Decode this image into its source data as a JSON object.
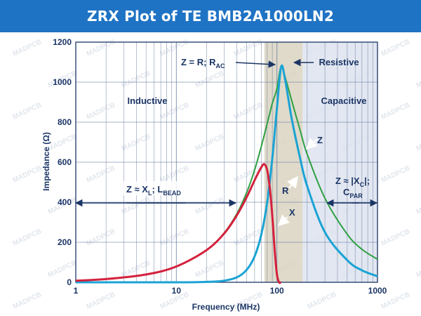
{
  "chart_data": {
    "type": "line",
    "title": "ZRX Plot of TE BMB2A1000LN2",
    "xlabel": "Frequency (MHz)",
    "ylabel": "Impedance (Ω)",
    "xscale": "log",
    "xlim": [
      1,
      1000
    ],
    "ylim": [
      0,
      1200
    ],
    "x_ticks": [
      1,
      10,
      100,
      1000
    ],
    "x_tick_labels": [
      "1",
      "10",
      "100",
      "1000"
    ],
    "y_ticks": [
      0,
      200,
      400,
      600,
      800,
      1000,
      1200
    ],
    "y_tick_labels": [
      "0",
      "200",
      "400",
      "600",
      "800",
      "1000",
      "1200"
    ],
    "grid": true,
    "regions": [
      {
        "name": "Inductive",
        "label": "Inductive",
        "x_range": [
          1,
          75
        ]
      },
      {
        "name": "Resistive",
        "label": "Resistive",
        "x_range": [
          75,
          180
        ],
        "color": "#d9d4c1"
      },
      {
        "name": "Capacitive",
        "label": "Capacitive",
        "x_range": [
          180,
          1000
        ],
        "color": "#dde3ee"
      }
    ],
    "series": [
      {
        "name": "Z",
        "color": "#2ea043",
        "x": [
          1,
          2,
          5,
          10,
          20,
          30,
          40,
          50,
          60,
          70,
          80,
          90,
          100,
          110,
          120,
          140,
          170,
          200,
          300,
          500,
          700,
          1000
        ],
        "y": [
          8,
          16,
          39,
          79,
          161,
          248,
          343,
          448,
          562,
          680,
          793,
          894,
          968,
          1080,
          1030,
          910,
          760,
          640,
          420,
          240,
          165,
          115
        ]
      },
      {
        "name": "R",
        "color": "#1aa3d4",
        "x": [
          1,
          10,
          20,
          30,
          40,
          50,
          60,
          70,
          80,
          90,
          100,
          110,
          120,
          140,
          170,
          200,
          300,
          500,
          700,
          1000
        ],
        "y": [
          0,
          0,
          2,
          8,
          25,
          62,
          130,
          240,
          400,
          620,
          870,
          1075,
          1020,
          820,
          620,
          480,
          250,
          110,
          60,
          30
        ]
      },
      {
        "name": "X",
        "color": "#d4213d",
        "x": [
          1,
          2,
          5,
          10,
          20,
          30,
          40,
          50,
          60,
          70,
          75,
          80,
          85,
          90,
          95,
          100,
          105,
          110
        ],
        "y": [
          8,
          16,
          39,
          79,
          161,
          245,
          335,
          425,
          510,
          575,
          590,
          560,
          470,
          330,
          160,
          40,
          0,
          0
        ]
      }
    ],
    "annotations": {
      "z_r": "Z = R; R",
      "z_r_sub": "AC",
      "resistive": "Resistive",
      "inductive": "Inductive",
      "capacitive": "Capacitive",
      "z_label": "Z",
      "r_label": "R",
      "x_label": "X",
      "z_xl": "Z ≈ X",
      "z_xl_sub": "L",
      "z_xl_rest": "; L",
      "z_xl_bead": "BEAD",
      "z_xc": "Z ≈ |X",
      "z_xc_sub": "C",
      "z_xc_rest": "|;",
      "c_par": "C",
      "c_par_sub": "PAR"
    },
    "watermark": "MADPCB"
  }
}
